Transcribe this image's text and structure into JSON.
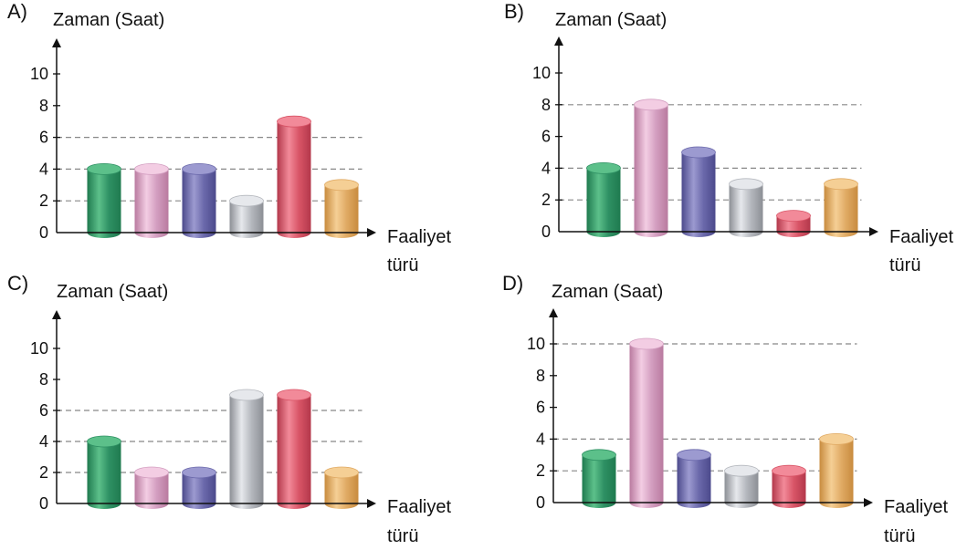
{
  "chart_data": [
    {
      "type": "bar",
      "panel_label": "A)",
      "ylabel": "Zaman (Saat)",
      "xlabel_line1": "Faaliyet",
      "xlabel_line2": "türü",
      "yticks": [
        "0",
        "2",
        "4",
        "6",
        "8",
        "10"
      ],
      "ylim": [
        0,
        10
      ],
      "values": [
        4,
        4,
        4,
        2,
        7,
        3
      ],
      "guides": [
        2,
        4,
        6
      ]
    },
    {
      "type": "bar",
      "panel_label": "B)",
      "ylabel": "Zaman (Saat)",
      "xlabel_line1": "Faaliyet",
      "xlabel_line2": "türü",
      "yticks": [
        "0",
        "2",
        "4",
        "6",
        "8",
        "10"
      ],
      "ylim": [
        0,
        10
      ],
      "values": [
        4,
        8,
        5,
        3,
        1,
        3
      ],
      "guides": [
        2,
        4,
        8
      ]
    },
    {
      "type": "bar",
      "panel_label": "C)",
      "ylabel": "Zaman (Saat)",
      "xlabel_line1": "Faaliyet",
      "xlabel_line2": "türü",
      "yticks": [
        "0",
        "2",
        "4",
        "6",
        "8",
        "10"
      ],
      "ylim": [
        0,
        10
      ],
      "values": [
        4,
        2,
        2,
        7,
        7,
        2
      ],
      "guides": [
        2,
        4,
        6
      ]
    },
    {
      "type": "bar",
      "panel_label": "D)",
      "ylabel": "Zaman (Saat)",
      "xlabel_line1": "Faaliyet",
      "xlabel_line2": "türü",
      "yticks": [
        "0",
        "2",
        "4",
        "6",
        "8",
        "10"
      ],
      "ylim": [
        0,
        10
      ],
      "values": [
        3,
        10,
        3,
        2,
        2,
        4
      ],
      "guides": [
        2,
        4,
        10
      ]
    }
  ],
  "colors": {
    "bars": [
      [
        "#1f7a4f",
        "#5cc08a",
        "#2e9063"
      ],
      [
        "#b97a9f",
        "#f3cde3",
        "#d39ec0"
      ],
      [
        "#4c4a8c",
        "#9c9ad0",
        "#6a68aa"
      ],
      [
        "#8c8f95",
        "#e6e8ec",
        "#b4b7bd"
      ],
      [
        "#b3384b",
        "#f28a99",
        "#d85466"
      ],
      [
        "#c88b3e",
        "#f5cf95",
        "#e0aa64"
      ]
    ],
    "axis": "#111111",
    "guide": "#888888"
  }
}
